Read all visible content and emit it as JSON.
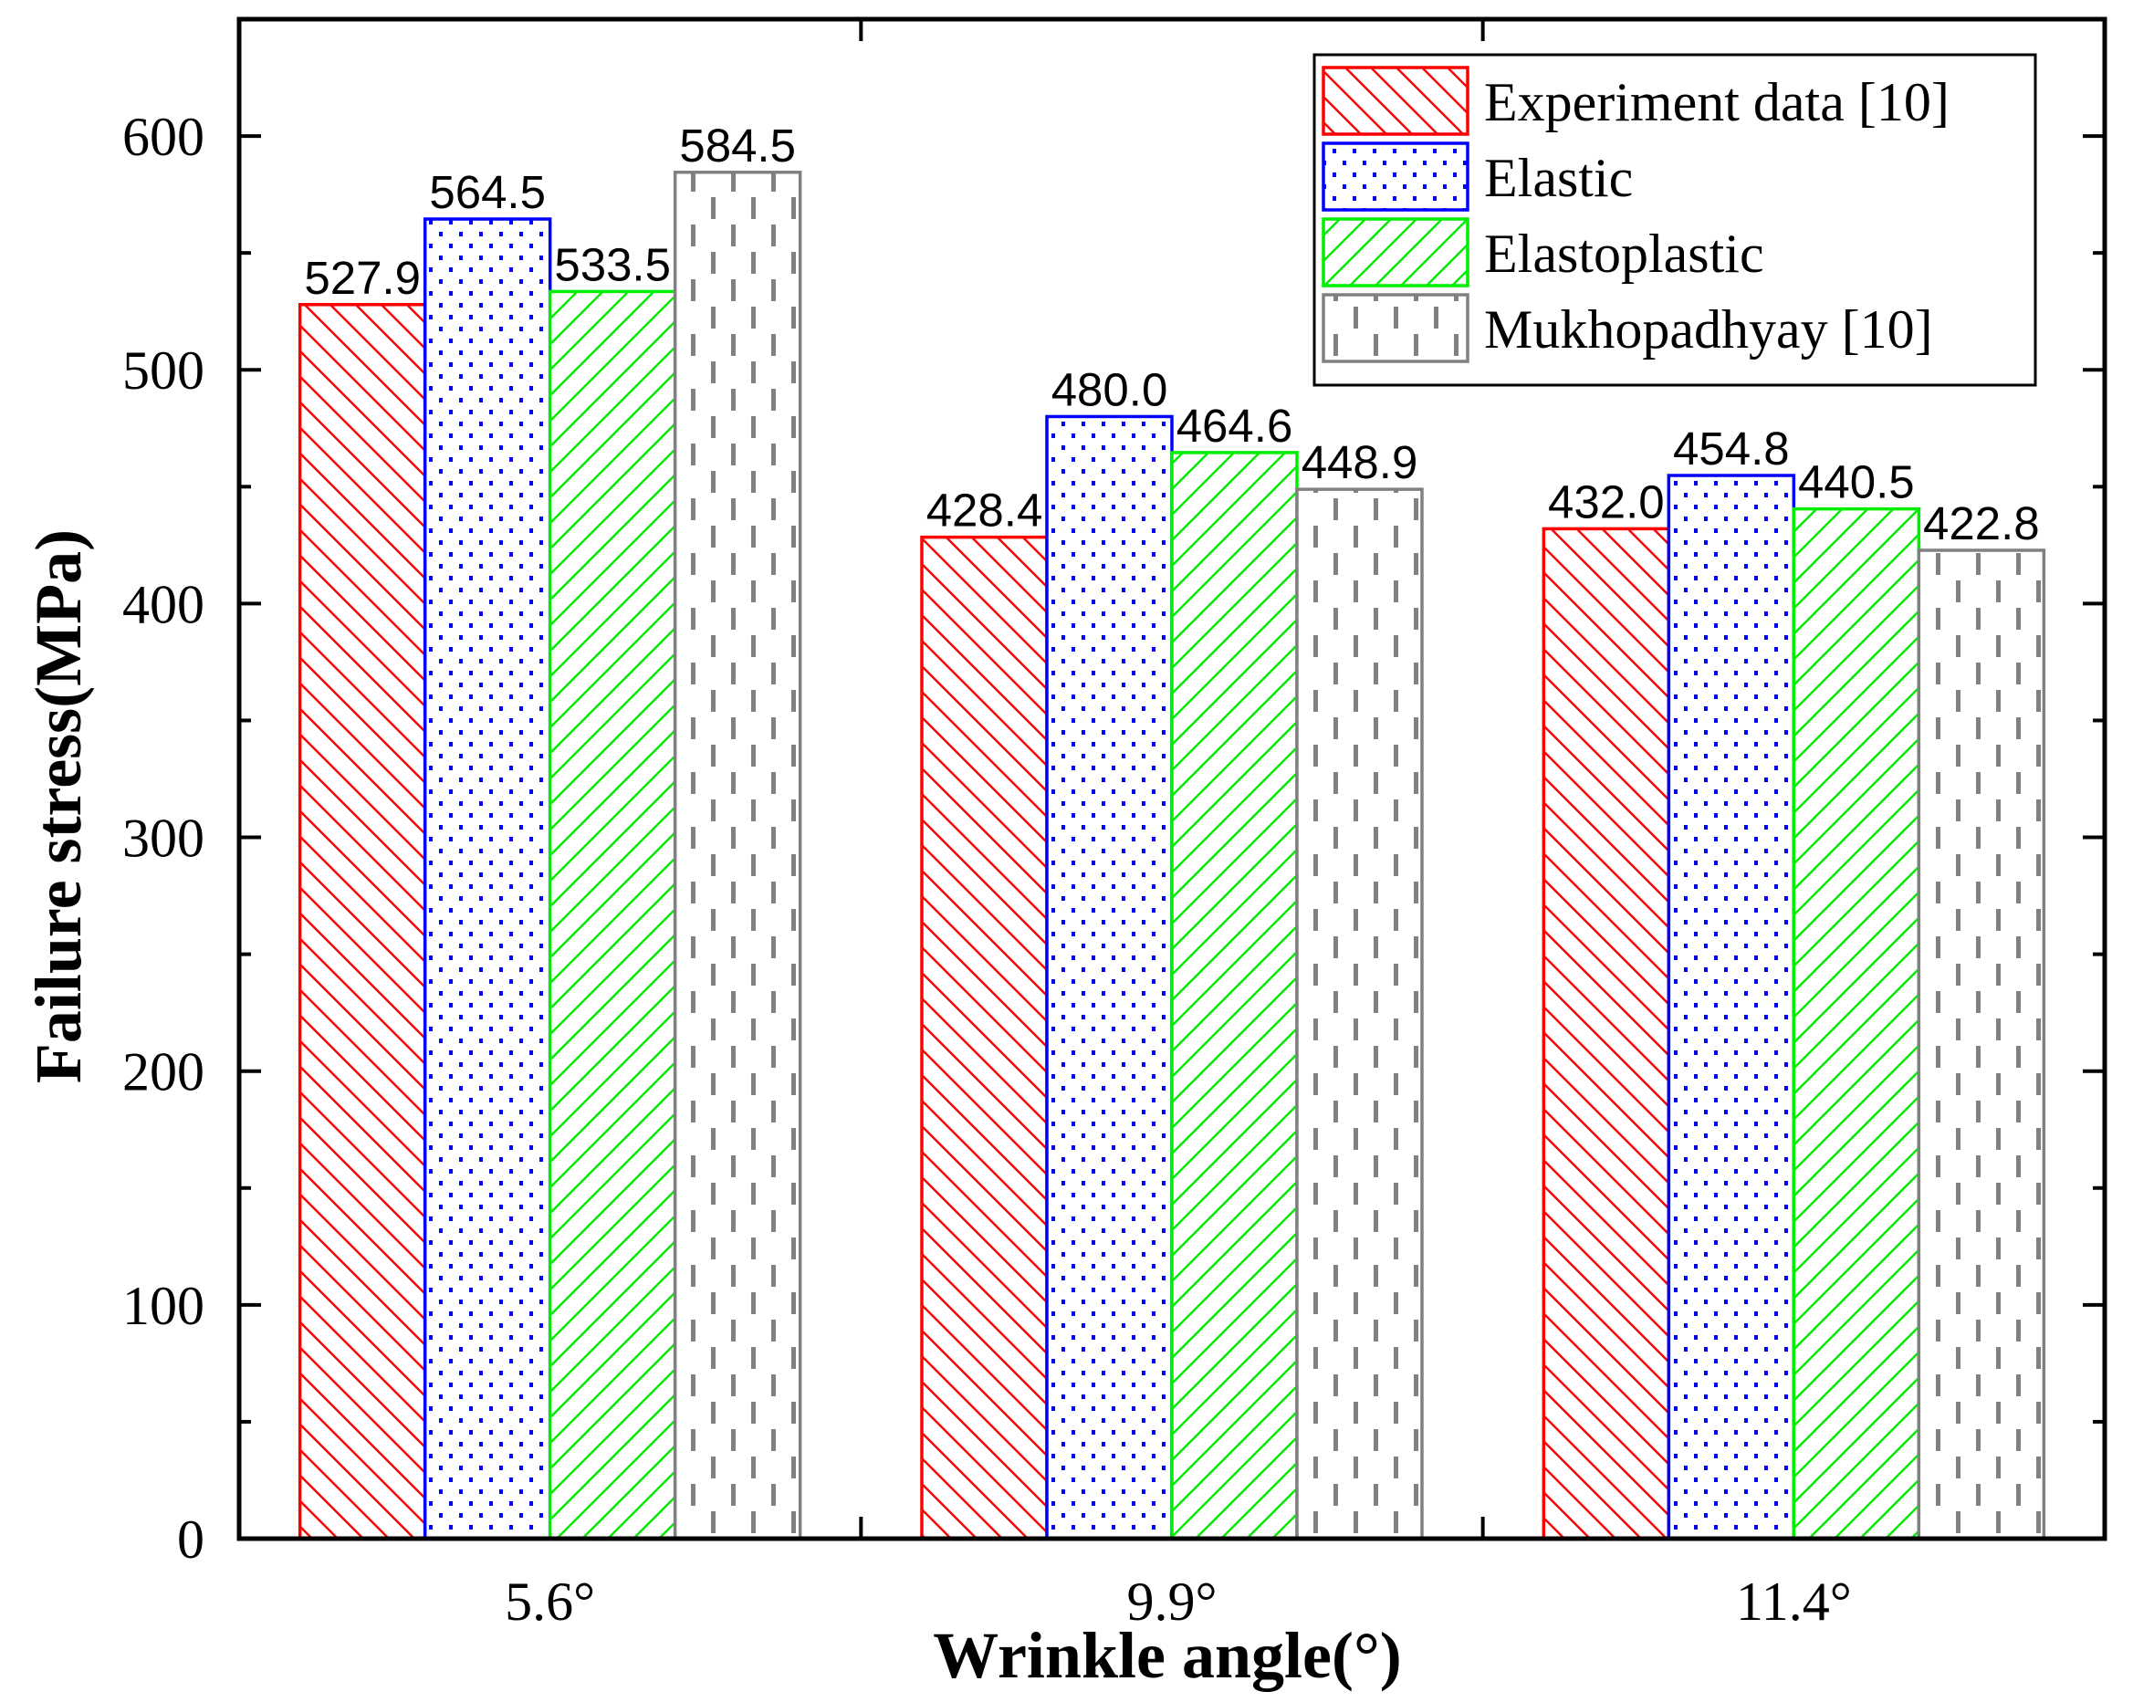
{
  "chart_data": {
    "type": "bar",
    "title": "",
    "xlabel": "Wrinkle angle(°)",
    "ylabel": "Failure stress(MPa)",
    "categories": [
      "5.6°",
      "9.9°",
      "11.4°"
    ],
    "ylim": [
      0,
      650
    ],
    "yticks": [
      0,
      100,
      200,
      300,
      400,
      500,
      600
    ],
    "grid": false,
    "legend_position": "top-right",
    "series": [
      {
        "name": "Experiment data [10]",
        "values": [
          527.9,
          428.4,
          432.0
        ],
        "labels": [
          "527.9",
          "428.4",
          "432.0"
        ],
        "color": "#ff0000",
        "pattern": "back-diagonal"
      },
      {
        "name": "Elastic",
        "values": [
          564.5,
          480.0,
          454.8
        ],
        "labels": [
          "564.5",
          "480.0",
          "454.8"
        ],
        "color": "#0000ff",
        "pattern": "dots"
      },
      {
        "name": "Elastoplastic",
        "values": [
          533.5,
          464.6,
          440.5
        ],
        "labels": [
          "533.5",
          "464.6",
          "440.5"
        ],
        "color": "#00ee00",
        "pattern": "forward-diagonal"
      },
      {
        "name": "Mukhopadhyay [10]",
        "values": [
          584.5,
          448.9,
          422.8
        ],
        "labels": [
          "584.5",
          "448.9",
          "422.8"
        ],
        "color": "#808080",
        "pattern": "vertical-dashes"
      }
    ]
  }
}
